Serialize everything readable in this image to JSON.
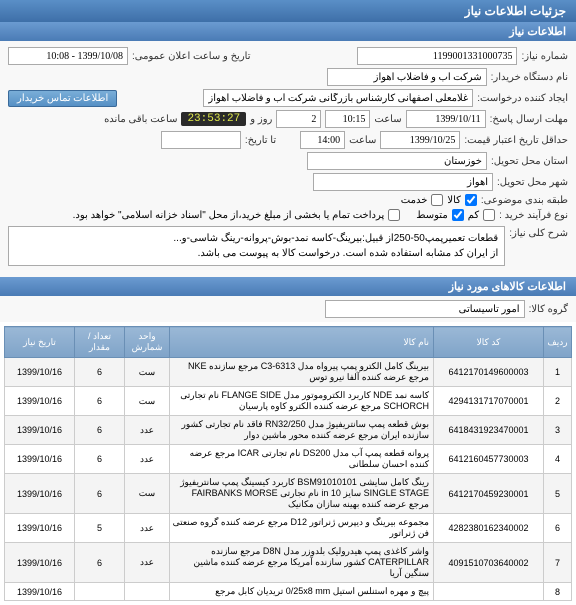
{
  "headers": {
    "main": "جزئیات اطلاعات نیاز",
    "info": "اطلاعات نیاز",
    "items": "اطلاعات کالاهای مورد نیاز"
  },
  "labels": {
    "request_number": "شماره نیاز:",
    "announce_date": "تاریخ و ساعت اعلان عمومی:",
    "buyer_org": "نام دستگاه خریدار:",
    "creator": "ایجاد کننده درخواست:",
    "contact_btn": "اطلاعات تماس خریدار",
    "response_deadline": "مهلت ارسال پاسخ:",
    "hour": "ساعت",
    "day_and": "روز و",
    "remaining": "ساعت باقی مانده",
    "price_validity": "حداقل تاریخ اعتبار قیمت:",
    "to_date": "تا تاریخ:",
    "delivery_province": "استان محل تحویل:",
    "delivery_city": "شهر محل تحویل:",
    "budget_class": "طبقه بندی موضوعی:",
    "goods_chk": "کالا",
    "services_chk": "خدمت",
    "process_type": "نوع فرآیند خرید :",
    "low": "کم",
    "medium": "متوسط",
    "payment_note": "پرداخت تمام یا بخشی از مبلغ خرید،از محل \"اسناد خزانه اسلامی\" خواهد بود.",
    "main_desc": "شرح کلی نیاز:",
    "group": "گروه کالا:"
  },
  "values": {
    "request_number": "1199001331000735",
    "announce_date": "1399/10/08 - 10:08",
    "buyer_org": "شرکت آب و فاضلاب اهواز",
    "creator": "غلامعلی اصفهانی کارشناس بازرگانی شرکت آب و فاضلاب اهواز",
    "response_date": "1399/10/11",
    "response_time": "10:15",
    "days_remaining": "2",
    "countdown": "23:53:27",
    "price_validity_date": "1399/10/25",
    "price_validity_time": "14:00",
    "delivery_province": "خوزستان",
    "delivery_city": "اهواز",
    "desc_line1": "قطعات تعمیرپمپ50-250از قبیل:بیرینگ-کاسه نمد-بوش-پروانه-رینگ شاسی-و...",
    "desc_line2": "از ایران کد مشابه استفاده شده است. درخواست کالا به پیوست می باشد.",
    "group": "امور تاسیساتی"
  },
  "checkboxes": {
    "goods": true,
    "services": false,
    "low": false,
    "medium": true,
    "payment": false
  },
  "table": {
    "columns": [
      "ردیف",
      "کد کالا",
      "نام کالا",
      "واحد شمارش",
      "تعداد / مقدار",
      "تاریخ نیاز"
    ],
    "rows": [
      [
        "1",
        "6412170149600003",
        "بیرینگ کامل الکترو پمپ پیرواه مدل C3-6313 مرجع سازنده NKE مرجع عرضه کننده آلفا نیرو توس",
        "ست",
        "6",
        "1399/10/16"
      ],
      [
        "2",
        "4294131717070001",
        "کاسه نمد NDE کاربرد الکتروموتور مدل FLANGE SIDE نام تجارتی SCHORCH مرجع عرضه کننده الکترو کاوه پارسیان",
        "ست",
        "6",
        "1399/10/16"
      ],
      [
        "3",
        "6418431923470001",
        "بوش قطعه پمپ سانتریفیوژ مدل RN32/250 فاقد نام تجارتی کشور سازنده ایران مرجع عرضه کننده محور ماشین دوار",
        "عدد",
        "6",
        "1399/10/16"
      ],
      [
        "4",
        "6412160457730003",
        "پروانه قطعه پمپ آب مدل DS200 نام تجارتی ICAR مرجع عرضه کننده احسان سلطانی",
        "عدد",
        "6",
        "1399/10/16"
      ],
      [
        "5",
        "6412170459230001",
        "رینگ کامل سایشی BSM91010101 کاربرد کیسینگ پمپ سانتریفیوژ SINGLE STAGE سایز 10 in نام تجارتی FAIRBANKS MORSE مرجع عرضه کننده بهینه سازان مکانیک",
        "ست",
        "6",
        "1399/10/16"
      ],
      [
        "6",
        "4282380162340002",
        "مجموعه بیرینگ و دیپرس ژنراتور D12 مرجع عرضه کننده گروه صنعتی فن ژنراتور",
        "عدد",
        "5",
        "1399/10/16"
      ],
      [
        "7",
        "4091510703640002",
        "واشر کاغذی پمپ هیدرولیک بلدوزر مدل D8N مرجع سازنده CATERPILLAR کشور سازنده آمریکا مرجع عرضه کننده ماشین سنگین آریا",
        "عدد",
        "6",
        "1399/10/16"
      ],
      [
        "8",
        "",
        "پیچ و مهره استنلس استیل 0/25x8 mm تریدیان کابل مرجع",
        "",
        "",
        "1399/10/16"
      ]
    ]
  }
}
